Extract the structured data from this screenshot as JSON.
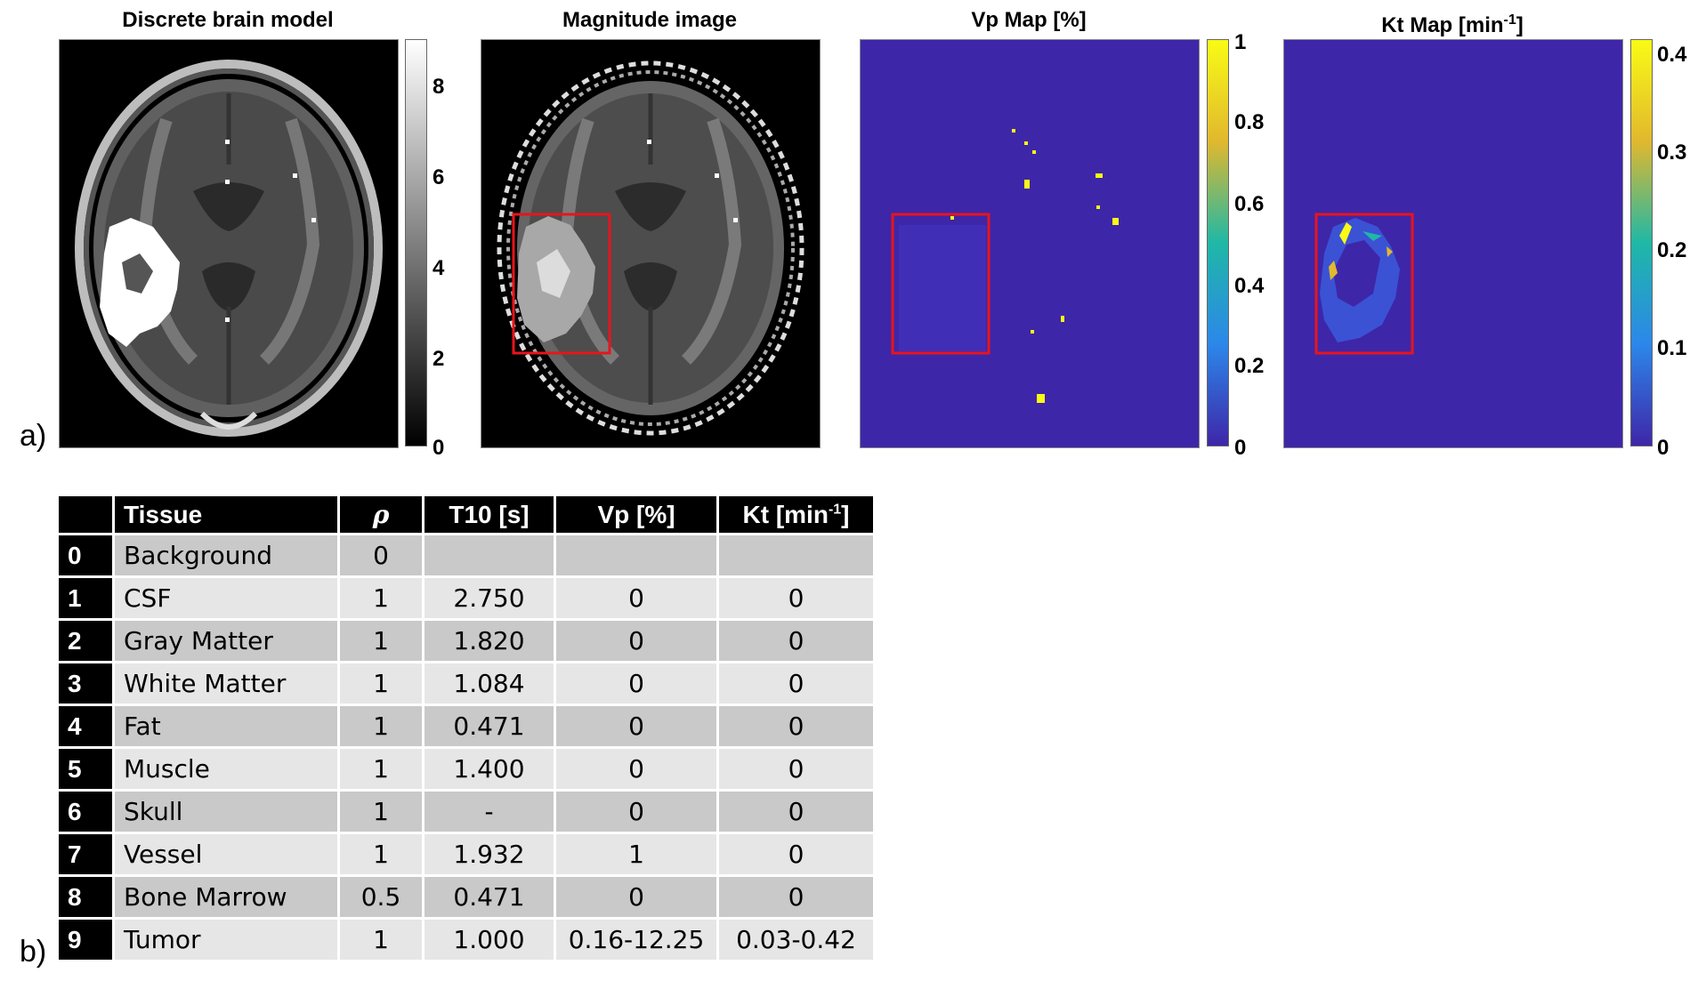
{
  "panels": {
    "label_a": "a)",
    "label_b": "b)",
    "brain_model": {
      "title": "Discrete brain model",
      "colorbar": {
        "colormap": "gray",
        "ticks": [
          "8",
          "6",
          "4",
          "2",
          "0"
        ]
      }
    },
    "magnitude": {
      "title": "Magnitude image"
    },
    "vp_map": {
      "title": "Vp Map [%]",
      "colorbar": {
        "colormap": "parula",
        "ticks": [
          "1",
          "0.8",
          "0.6",
          "0.4",
          "0.2",
          "0"
        ]
      }
    },
    "kt_map": {
      "title_main": "Kt Map [min",
      "title_sup": "-1",
      "title_end": "]",
      "colorbar": {
        "colormap": "parula",
        "ticks": [
          "0.4",
          "0.3",
          "0.2",
          "0.1",
          "0"
        ]
      }
    },
    "colors": {
      "roi_box": "#e8141c",
      "parula_low": "#3e26a8",
      "parula_high": "#f9fb15"
    }
  },
  "table": {
    "headers": {
      "index": "",
      "tissue": "Tissue",
      "rho": "ρ",
      "t10": "T10 [s]",
      "vp": "Vp [%]",
      "kt_main": "Kt [min",
      "kt_sup": "-1",
      "kt_end": "]"
    },
    "rows": [
      {
        "index": "0",
        "tissue": "Background",
        "rho": "0",
        "t10": "",
        "vp": "",
        "kt": ""
      },
      {
        "index": "1",
        "tissue": "CSF",
        "rho": "1",
        "t10": "2.750",
        "vp": "0",
        "kt": "0"
      },
      {
        "index": "2",
        "tissue": "Gray Matter",
        "rho": "1",
        "t10": "1.820",
        "vp": "0",
        "kt": "0"
      },
      {
        "index": "3",
        "tissue": "White Matter",
        "rho": "1",
        "t10": "1.084",
        "vp": "0",
        "kt": "0"
      },
      {
        "index": "4",
        "tissue": "Fat",
        "rho": "1",
        "t10": "0.471",
        "vp": "0",
        "kt": "0"
      },
      {
        "index": "5",
        "tissue": "Muscle",
        "rho": "1",
        "t10": "1.400",
        "vp": "0",
        "kt": "0"
      },
      {
        "index": "6",
        "tissue": "Skull",
        "rho": "1",
        "t10": "-",
        "vp": "0",
        "kt": "0"
      },
      {
        "index": "7",
        "tissue": "Vessel",
        "rho": "1",
        "t10": "1.932",
        "vp": "1",
        "kt": "0"
      },
      {
        "index": "8",
        "tissue": "Bone Marrow",
        "rho": "0.5",
        "t10": "0.471",
        "vp": "0",
        "kt": "0"
      },
      {
        "index": "9",
        "tissue": "Tumor",
        "rho": "1",
        "t10": "1.000",
        "vp": "0.16-12.25",
        "kt": "0.03-0.42"
      }
    ]
  }
}
